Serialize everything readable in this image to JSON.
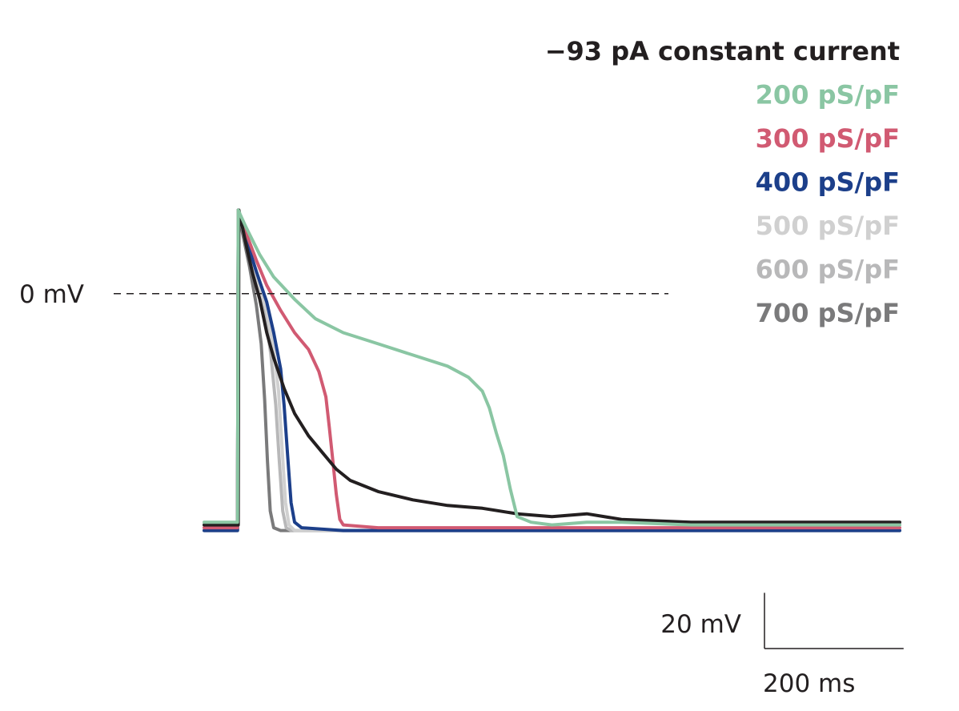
{
  "chart_data": {
    "type": "line",
    "title": "",
    "xlabel": "",
    "ylabel": "",
    "x_unit": "ms",
    "y_unit": "mV",
    "xlim": [
      0,
      1000
    ],
    "ylim": [
      -90,
      35
    ],
    "reference_line": {
      "y": 0,
      "label": "0 mV",
      "style": "dashed"
    },
    "scale_bar": {
      "y_value": 20,
      "y_label": "20 mV",
      "x_value": 200,
      "x_label": "200 ms"
    },
    "legend_placement": "top-right",
    "series": [
      {
        "name": "−93 pA constant current",
        "color": "#231f20",
        "points": [
          [
            0,
            -83
          ],
          [
            49,
            -83
          ],
          [
            50,
            30
          ],
          [
            60,
            18
          ],
          [
            70,
            7
          ],
          [
            80,
            -2
          ],
          [
            90,
            -14
          ],
          [
            100,
            -23
          ],
          [
            115,
            -34
          ],
          [
            130,
            -43
          ],
          [
            150,
            -51
          ],
          [
            170,
            -57
          ],
          [
            190,
            -63
          ],
          [
            210,
            -67
          ],
          [
            250,
            -71
          ],
          [
            300,
            -74
          ],
          [
            350,
            -76
          ],
          [
            400,
            -77
          ],
          [
            450,
            -79
          ],
          [
            500,
            -80
          ],
          [
            550,
            -79
          ],
          [
            600,
            -81
          ],
          [
            700,
            -82
          ],
          [
            800,
            -82
          ],
          [
            900,
            -82
          ],
          [
            1000,
            -82
          ]
        ]
      },
      {
        "name": "200 pS/pF",
        "color": "#8ac6a3",
        "points": [
          [
            0,
            -82
          ],
          [
            48,
            -82
          ],
          [
            49,
            30
          ],
          [
            60,
            24
          ],
          [
            80,
            14
          ],
          [
            100,
            6
          ],
          [
            130,
            -2
          ],
          [
            160,
            -9
          ],
          [
            200,
            -14
          ],
          [
            250,
            -18
          ],
          [
            300,
            -22
          ],
          [
            350,
            -26
          ],
          [
            380,
            -30
          ],
          [
            400,
            -35
          ],
          [
            410,
            -41
          ],
          [
            420,
            -50
          ],
          [
            430,
            -58
          ],
          [
            440,
            -70
          ],
          [
            450,
            -80
          ],
          [
            470,
            -82
          ],
          [
            500,
            -83
          ],
          [
            550,
            -82
          ],
          [
            600,
            -82
          ],
          [
            700,
            -83
          ],
          [
            800,
            -83
          ],
          [
            900,
            -83
          ],
          [
            1000,
            -83
          ]
        ]
      },
      {
        "name": "300 pS/pF",
        "color": "#d15a72",
        "points": [
          [
            0,
            -84
          ],
          [
            48,
            -84
          ],
          [
            49,
            30
          ],
          [
            60,
            22
          ],
          [
            75,
            12
          ],
          [
            90,
            3
          ],
          [
            110,
            -6
          ],
          [
            130,
            -14
          ],
          [
            150,
            -20
          ],
          [
            165,
            -28
          ],
          [
            175,
            -37
          ],
          [
            180,
            -48
          ],
          [
            185,
            -60
          ],
          [
            190,
            -72
          ],
          [
            195,
            -81
          ],
          [
            200,
            -83
          ],
          [
            250,
            -84
          ],
          [
            300,
            -84
          ],
          [
            400,
            -84
          ],
          [
            500,
            -84
          ],
          [
            600,
            -84
          ],
          [
            700,
            -84
          ],
          [
            800,
            -84
          ],
          [
            900,
            -84
          ],
          [
            1000,
            -84
          ]
        ]
      },
      {
        "name": "400 pS/pF",
        "color": "#1c3f8a",
        "points": [
          [
            0,
            -85
          ],
          [
            48,
            -85
          ],
          [
            49,
            30
          ],
          [
            60,
            20
          ],
          [
            75,
            8
          ],
          [
            90,
            -3
          ],
          [
            100,
            -14
          ],
          [
            110,
            -27
          ],
          [
            115,
            -40
          ],
          [
            120,
            -58
          ],
          [
            125,
            -75
          ],
          [
            130,
            -82
          ],
          [
            140,
            -84
          ],
          [
            200,
            -85
          ],
          [
            300,
            -85
          ],
          [
            400,
            -85
          ],
          [
            500,
            -85
          ],
          [
            600,
            -85
          ],
          [
            700,
            -85
          ],
          [
            800,
            -85
          ],
          [
            900,
            -85
          ],
          [
            1000,
            -85
          ]
        ]
      },
      {
        "name": "500 pS/pF",
        "color": "#d0d0d0",
        "points": [
          [
            0,
            -85
          ],
          [
            48,
            -85
          ],
          [
            49,
            30
          ],
          [
            60,
            19
          ],
          [
            75,
            6
          ],
          [
            90,
            -6
          ],
          [
            100,
            -20
          ],
          [
            107,
            -35
          ],
          [
            112,
            -55
          ],
          [
            117,
            -75
          ],
          [
            122,
            -83
          ],
          [
            130,
            -85
          ],
          [
            200,
            -85
          ],
          [
            300,
            -85
          ],
          [
            400,
            -85
          ],
          [
            500,
            -85
          ],
          [
            600,
            -85
          ],
          [
            700,
            -85
          ],
          [
            800,
            -85
          ],
          [
            900,
            -85
          ],
          [
            1000,
            -85
          ]
        ]
      },
      {
        "name": "600 pS/pF",
        "color": "#b8b8b9",
        "points": [
          [
            0,
            -85
          ],
          [
            48,
            -85
          ],
          [
            49,
            30
          ],
          [
            60,
            18
          ],
          [
            75,
            4
          ],
          [
            88,
            -8
          ],
          [
            96,
            -22
          ],
          [
            103,
            -40
          ],
          [
            108,
            -60
          ],
          [
            113,
            -78
          ],
          [
            118,
            -84
          ],
          [
            125,
            -85
          ],
          [
            200,
            -85
          ],
          [
            300,
            -85
          ],
          [
            400,
            -85
          ],
          [
            500,
            -85
          ],
          [
            600,
            -85
          ],
          [
            700,
            -85
          ],
          [
            800,
            -85
          ],
          [
            900,
            -85
          ],
          [
            1000,
            -85
          ]
        ]
      },
      {
        "name": "700 pS/pF",
        "color": "#7a7a7b",
        "points": [
          [
            0,
            -85
          ],
          [
            48,
            -85
          ],
          [
            49,
            30
          ],
          [
            55,
            22
          ],
          [
            65,
            10
          ],
          [
            75,
            -4
          ],
          [
            82,
            -18
          ],
          [
            87,
            -38
          ],
          [
            91,
            -60
          ],
          [
            95,
            -78
          ],
          [
            100,
            -84
          ],
          [
            110,
            -85
          ],
          [
            200,
            -85
          ],
          [
            300,
            -85
          ],
          [
            400,
            -85
          ],
          [
            500,
            -85
          ],
          [
            600,
            -85
          ],
          [
            700,
            -85
          ],
          [
            800,
            -85
          ],
          [
            900,
            -85
          ],
          [
            1000,
            -85
          ]
        ]
      }
    ]
  }
}
